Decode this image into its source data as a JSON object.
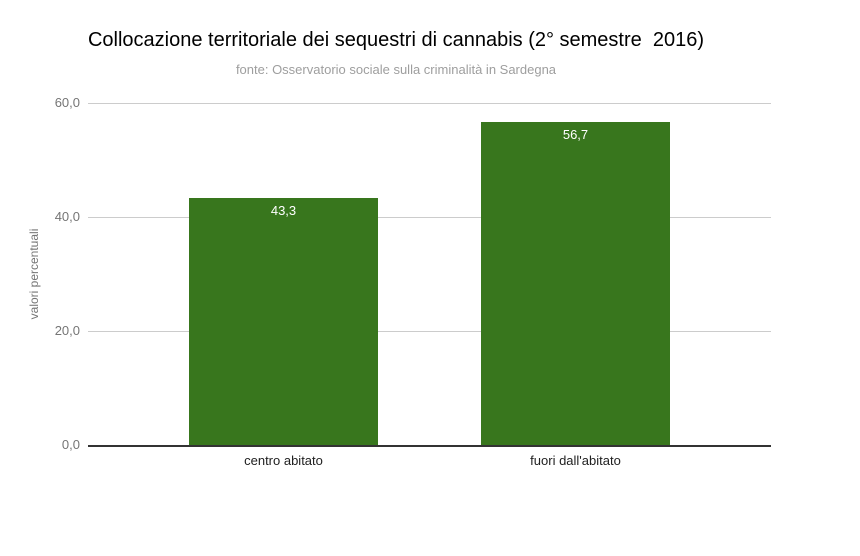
{
  "chart_data": {
    "type": "bar",
    "title": "Collocazione territoriale dei sequestri di cannabis (2° semestre  2016)",
    "subtitle": "fonte: Osservatorio sociale sulla criminalità in Sardegna",
    "categories": [
      "centro abitato",
      "fuori dall'abitato"
    ],
    "values": [
      43.3,
      56.7
    ],
    "value_labels": [
      "43,3",
      "56,7"
    ],
    "xlabel": "",
    "ylabel": "valori percentuali",
    "ylim": [
      0,
      60
    ],
    "y_ticks": [
      {
        "value": 0,
        "label": "0,0"
      },
      {
        "value": 20,
        "label": "20,0"
      },
      {
        "value": 40,
        "label": "40,0"
      },
      {
        "value": 60,
        "label": "60,0"
      }
    ],
    "grid": true,
    "legend_position": "none",
    "colors": {
      "bar": "#38761d",
      "value_label": "#ffffff",
      "gridline": "#cccccc",
      "baseline": "#333333",
      "tick_label": "#757575",
      "subtitle": "#9e9e9e",
      "title": "#000000",
      "category_label": "#212121",
      "background": "#ffffff"
    }
  }
}
